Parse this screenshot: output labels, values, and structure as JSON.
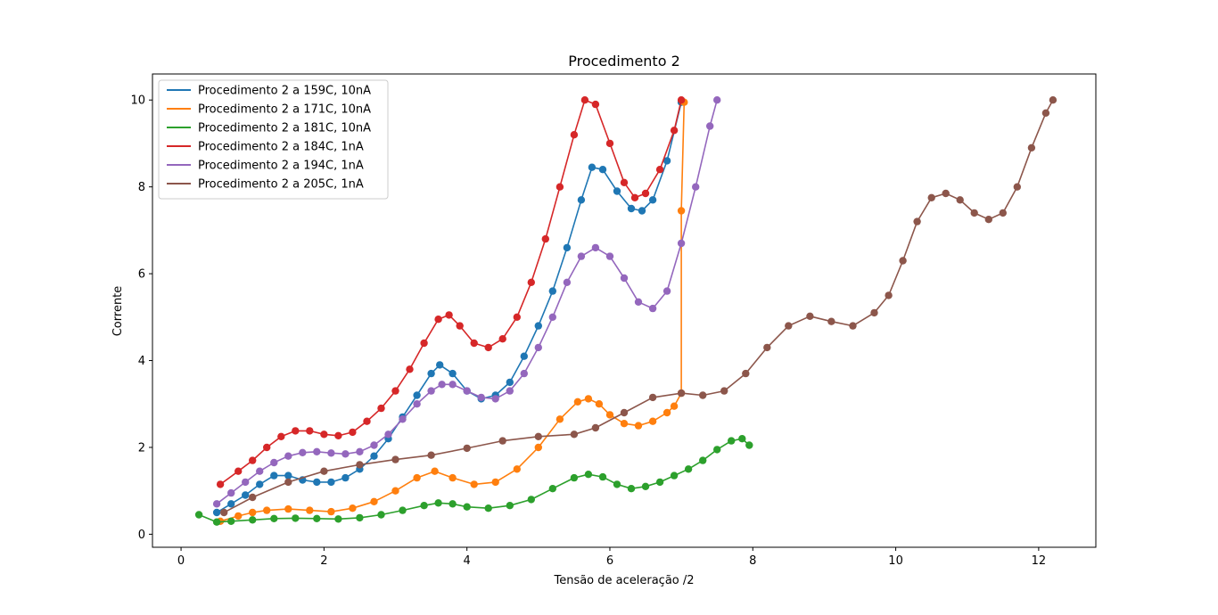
{
  "chart_data": {
    "type": "line",
    "title": "Procedimento 2",
    "xlabel": "Tensão de aceleração /2",
    "ylabel": "Corrente",
    "xlim": [
      -0.4,
      12.8
    ],
    "ylim": [
      -0.3,
      10.6
    ],
    "xticks": [
      0,
      2,
      4,
      6,
      8,
      10,
      12
    ],
    "yticks": [
      0,
      2,
      4,
      6,
      8,
      10
    ],
    "grid": false,
    "legend_position": "top-left",
    "series": [
      {
        "name": "Procedimento 2 a 159C, 10nA",
        "color": "#1f77b4",
        "x": [
          0.5,
          0.7,
          0.9,
          1.1,
          1.3,
          1.5,
          1.7,
          1.9,
          2.1,
          2.3,
          2.5,
          2.7,
          2.9,
          3.1,
          3.3,
          3.5,
          3.62,
          3.8,
          4.0,
          4.2,
          4.4,
          4.6,
          4.8,
          5.0,
          5.2,
          5.4,
          5.6,
          5.75,
          5.9,
          6.1,
          6.3,
          6.45,
          6.6,
          6.8,
          7.0
        ],
        "y": [
          0.5,
          0.7,
          0.9,
          1.15,
          1.35,
          1.35,
          1.25,
          1.2,
          1.2,
          1.3,
          1.5,
          1.8,
          2.2,
          2.7,
          3.2,
          3.7,
          3.9,
          3.7,
          3.3,
          3.12,
          3.2,
          3.5,
          4.1,
          4.8,
          5.6,
          6.6,
          7.7,
          8.45,
          8.4,
          7.9,
          7.5,
          7.45,
          7.7,
          8.6,
          9.95
        ]
      },
      {
        "name": "Procedimento 2 a 171C, 10nA",
        "color": "#ff7f0e",
        "x": [
          0.55,
          0.8,
          1.0,
          1.2,
          1.5,
          1.8,
          2.1,
          2.4,
          2.7,
          3.0,
          3.3,
          3.55,
          3.8,
          4.1,
          4.4,
          4.7,
          5.0,
          5.3,
          5.55,
          5.7,
          5.85,
          6.0,
          6.2,
          6.4,
          6.6,
          6.8,
          6.9,
          7.0,
          7.0,
          7.04
        ],
        "y": [
          0.3,
          0.42,
          0.5,
          0.55,
          0.58,
          0.55,
          0.52,
          0.6,
          0.75,
          1.0,
          1.3,
          1.45,
          1.3,
          1.15,
          1.2,
          1.5,
          2.0,
          2.65,
          3.05,
          3.12,
          3.0,
          2.75,
          2.55,
          2.5,
          2.6,
          2.8,
          2.95,
          3.25,
          7.45,
          9.95
        ]
      },
      {
        "name": "Procedimento 2 a 181C, 10nA",
        "color": "#2ca02c",
        "x": [
          0.25,
          0.5,
          0.7,
          1.0,
          1.3,
          1.6,
          1.9,
          2.2,
          2.5,
          2.8,
          3.1,
          3.4,
          3.6,
          3.8,
          4.0,
          4.3,
          4.6,
          4.9,
          5.2,
          5.5,
          5.7,
          5.9,
          6.1,
          6.3,
          6.5,
          6.7,
          6.9,
          7.1,
          7.3,
          7.5,
          7.7,
          7.85,
          7.95
        ],
        "y": [
          0.45,
          0.28,
          0.3,
          0.33,
          0.36,
          0.37,
          0.36,
          0.35,
          0.38,
          0.45,
          0.55,
          0.66,
          0.72,
          0.7,
          0.63,
          0.6,
          0.66,
          0.8,
          1.05,
          1.3,
          1.38,
          1.32,
          1.15,
          1.05,
          1.1,
          1.2,
          1.35,
          1.5,
          1.7,
          1.95,
          2.15,
          2.2,
          2.05
        ]
      },
      {
        "name": "Procedimento 2 a 184C, 1nA",
        "color": "#d62728",
        "x": [
          0.55,
          0.8,
          1.0,
          1.2,
          1.4,
          1.6,
          1.8,
          2.0,
          2.2,
          2.4,
          2.6,
          2.8,
          3.0,
          3.2,
          3.4,
          3.6,
          3.75,
          3.9,
          4.1,
          4.3,
          4.5,
          4.7,
          4.9,
          5.1,
          5.3,
          5.5,
          5.65,
          5.8,
          6.0,
          6.2,
          6.35,
          6.5,
          6.7,
          6.9,
          7.0
        ],
        "y": [
          1.15,
          1.45,
          1.7,
          2.0,
          2.25,
          2.38,
          2.38,
          2.3,
          2.27,
          2.35,
          2.6,
          2.9,
          3.3,
          3.8,
          4.4,
          4.95,
          5.05,
          4.8,
          4.4,
          4.3,
          4.5,
          5.0,
          5.8,
          6.8,
          8.0,
          9.2,
          10.0,
          9.9,
          9.0,
          8.1,
          7.75,
          7.85,
          8.4,
          9.3,
          10.0
        ]
      },
      {
        "name": "Procedimento 2 a 194C, 1nA",
        "color": "#9467bd",
        "x": [
          0.5,
          0.7,
          0.9,
          1.1,
          1.3,
          1.5,
          1.7,
          1.9,
          2.1,
          2.3,
          2.5,
          2.7,
          2.9,
          3.1,
          3.3,
          3.5,
          3.65,
          3.8,
          4.0,
          4.2,
          4.4,
          4.6,
          4.8,
          5.0,
          5.2,
          5.4,
          5.6,
          5.8,
          6.0,
          6.2,
          6.4,
          6.6,
          6.8,
          7.0,
          7.2,
          7.4,
          7.5
        ],
        "y": [
          0.7,
          0.95,
          1.2,
          1.45,
          1.65,
          1.8,
          1.88,
          1.9,
          1.87,
          1.85,
          1.9,
          2.05,
          2.3,
          2.65,
          3.0,
          3.3,
          3.45,
          3.45,
          3.3,
          3.15,
          3.12,
          3.3,
          3.7,
          4.3,
          5.0,
          5.8,
          6.4,
          6.6,
          6.4,
          5.9,
          5.35,
          5.2,
          5.6,
          6.7,
          8.0,
          9.4,
          10.0
        ]
      },
      {
        "name": "Procedimento 2 a 205C, 1nA",
        "color": "#8c564b",
        "x": [
          0.6,
          1.0,
          1.5,
          2.0,
          2.5,
          3.0,
          3.5,
          4.0,
          4.5,
          5.0,
          5.5,
          5.8,
          6.2,
          6.6,
          7.0,
          7.3,
          7.6,
          7.9,
          8.2,
          8.5,
          8.8,
          9.1,
          9.4,
          9.7,
          9.9,
          10.1,
          10.3,
          10.5,
          10.7,
          10.9,
          11.1,
          11.3,
          11.5,
          11.7,
          11.9,
          12.1,
          12.2
        ],
        "y": [
          0.5,
          0.85,
          1.2,
          1.45,
          1.6,
          1.72,
          1.82,
          1.98,
          2.15,
          2.25,
          2.3,
          2.45,
          2.8,
          3.15,
          3.25,
          3.2,
          3.3,
          3.7,
          4.3,
          4.8,
          5.02,
          4.9,
          4.8,
          5.1,
          5.5,
          6.3,
          7.2,
          7.75,
          7.85,
          7.7,
          7.4,
          7.25,
          7.4,
          8.0,
          8.9,
          9.7,
          10.0
        ]
      }
    ]
  }
}
